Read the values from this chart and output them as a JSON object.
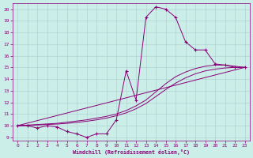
{
  "xlabel": "Windchill (Refroidissement éolien,°C)",
  "background_color": "#cceee8",
  "grid_color": "#aacccc",
  "line_color": "#880077",
  "xlim": [
    -0.5,
    23.5
  ],
  "ylim": [
    8.7,
    20.5
  ],
  "yticks": [
    9,
    10,
    11,
    12,
    13,
    14,
    15,
    16,
    17,
    18,
    19,
    20
  ],
  "xticks": [
    0,
    1,
    2,
    3,
    4,
    5,
    6,
    7,
    8,
    9,
    10,
    11,
    12,
    13,
    14,
    15,
    16,
    17,
    18,
    19,
    20,
    21,
    22,
    23
  ],
  "line_main": {
    "x": [
      0,
      1,
      2,
      3,
      4,
      5,
      6,
      7,
      8,
      9,
      10,
      11,
      12,
      13,
      14,
      15,
      16,
      17,
      18,
      19,
      20,
      21,
      22,
      23
    ],
    "y": [
      10.0,
      10.0,
      9.8,
      10.0,
      9.9,
      9.5,
      9.3,
      9.0,
      9.3,
      9.3,
      10.5,
      14.7,
      12.2,
      19.3,
      20.2,
      20.0,
      19.3,
      17.2,
      16.5,
      16.5,
      15.3,
      15.2,
      15.0,
      15.0
    ]
  },
  "line_straight": {
    "x": [
      0,
      23
    ],
    "y": [
      10.0,
      15.0
    ]
  },
  "line_curve1": {
    "x": [
      0,
      1,
      2,
      3,
      4,
      5,
      6,
      7,
      8,
      9,
      10,
      11,
      12,
      13,
      14,
      15,
      16,
      17,
      18,
      19,
      20,
      21,
      22,
      23
    ],
    "y": [
      10.0,
      10.05,
      10.1,
      10.15,
      10.2,
      10.3,
      10.4,
      10.5,
      10.65,
      10.8,
      11.0,
      11.3,
      11.7,
      12.2,
      12.9,
      13.6,
      14.2,
      14.6,
      14.9,
      15.1,
      15.2,
      15.2,
      15.1,
      15.0
    ]
  },
  "line_curve2": {
    "x": [
      0,
      1,
      2,
      3,
      4,
      5,
      6,
      7,
      8,
      9,
      10,
      11,
      12,
      13,
      14,
      15,
      16,
      17,
      18,
      19,
      20,
      21,
      22,
      23
    ],
    "y": [
      10.0,
      10.03,
      10.06,
      10.1,
      10.14,
      10.2,
      10.28,
      10.38,
      10.5,
      10.65,
      10.85,
      11.1,
      11.45,
      11.9,
      12.5,
      13.1,
      13.65,
      14.1,
      14.45,
      14.7,
      14.85,
      14.95,
      15.0,
      15.0
    ]
  }
}
